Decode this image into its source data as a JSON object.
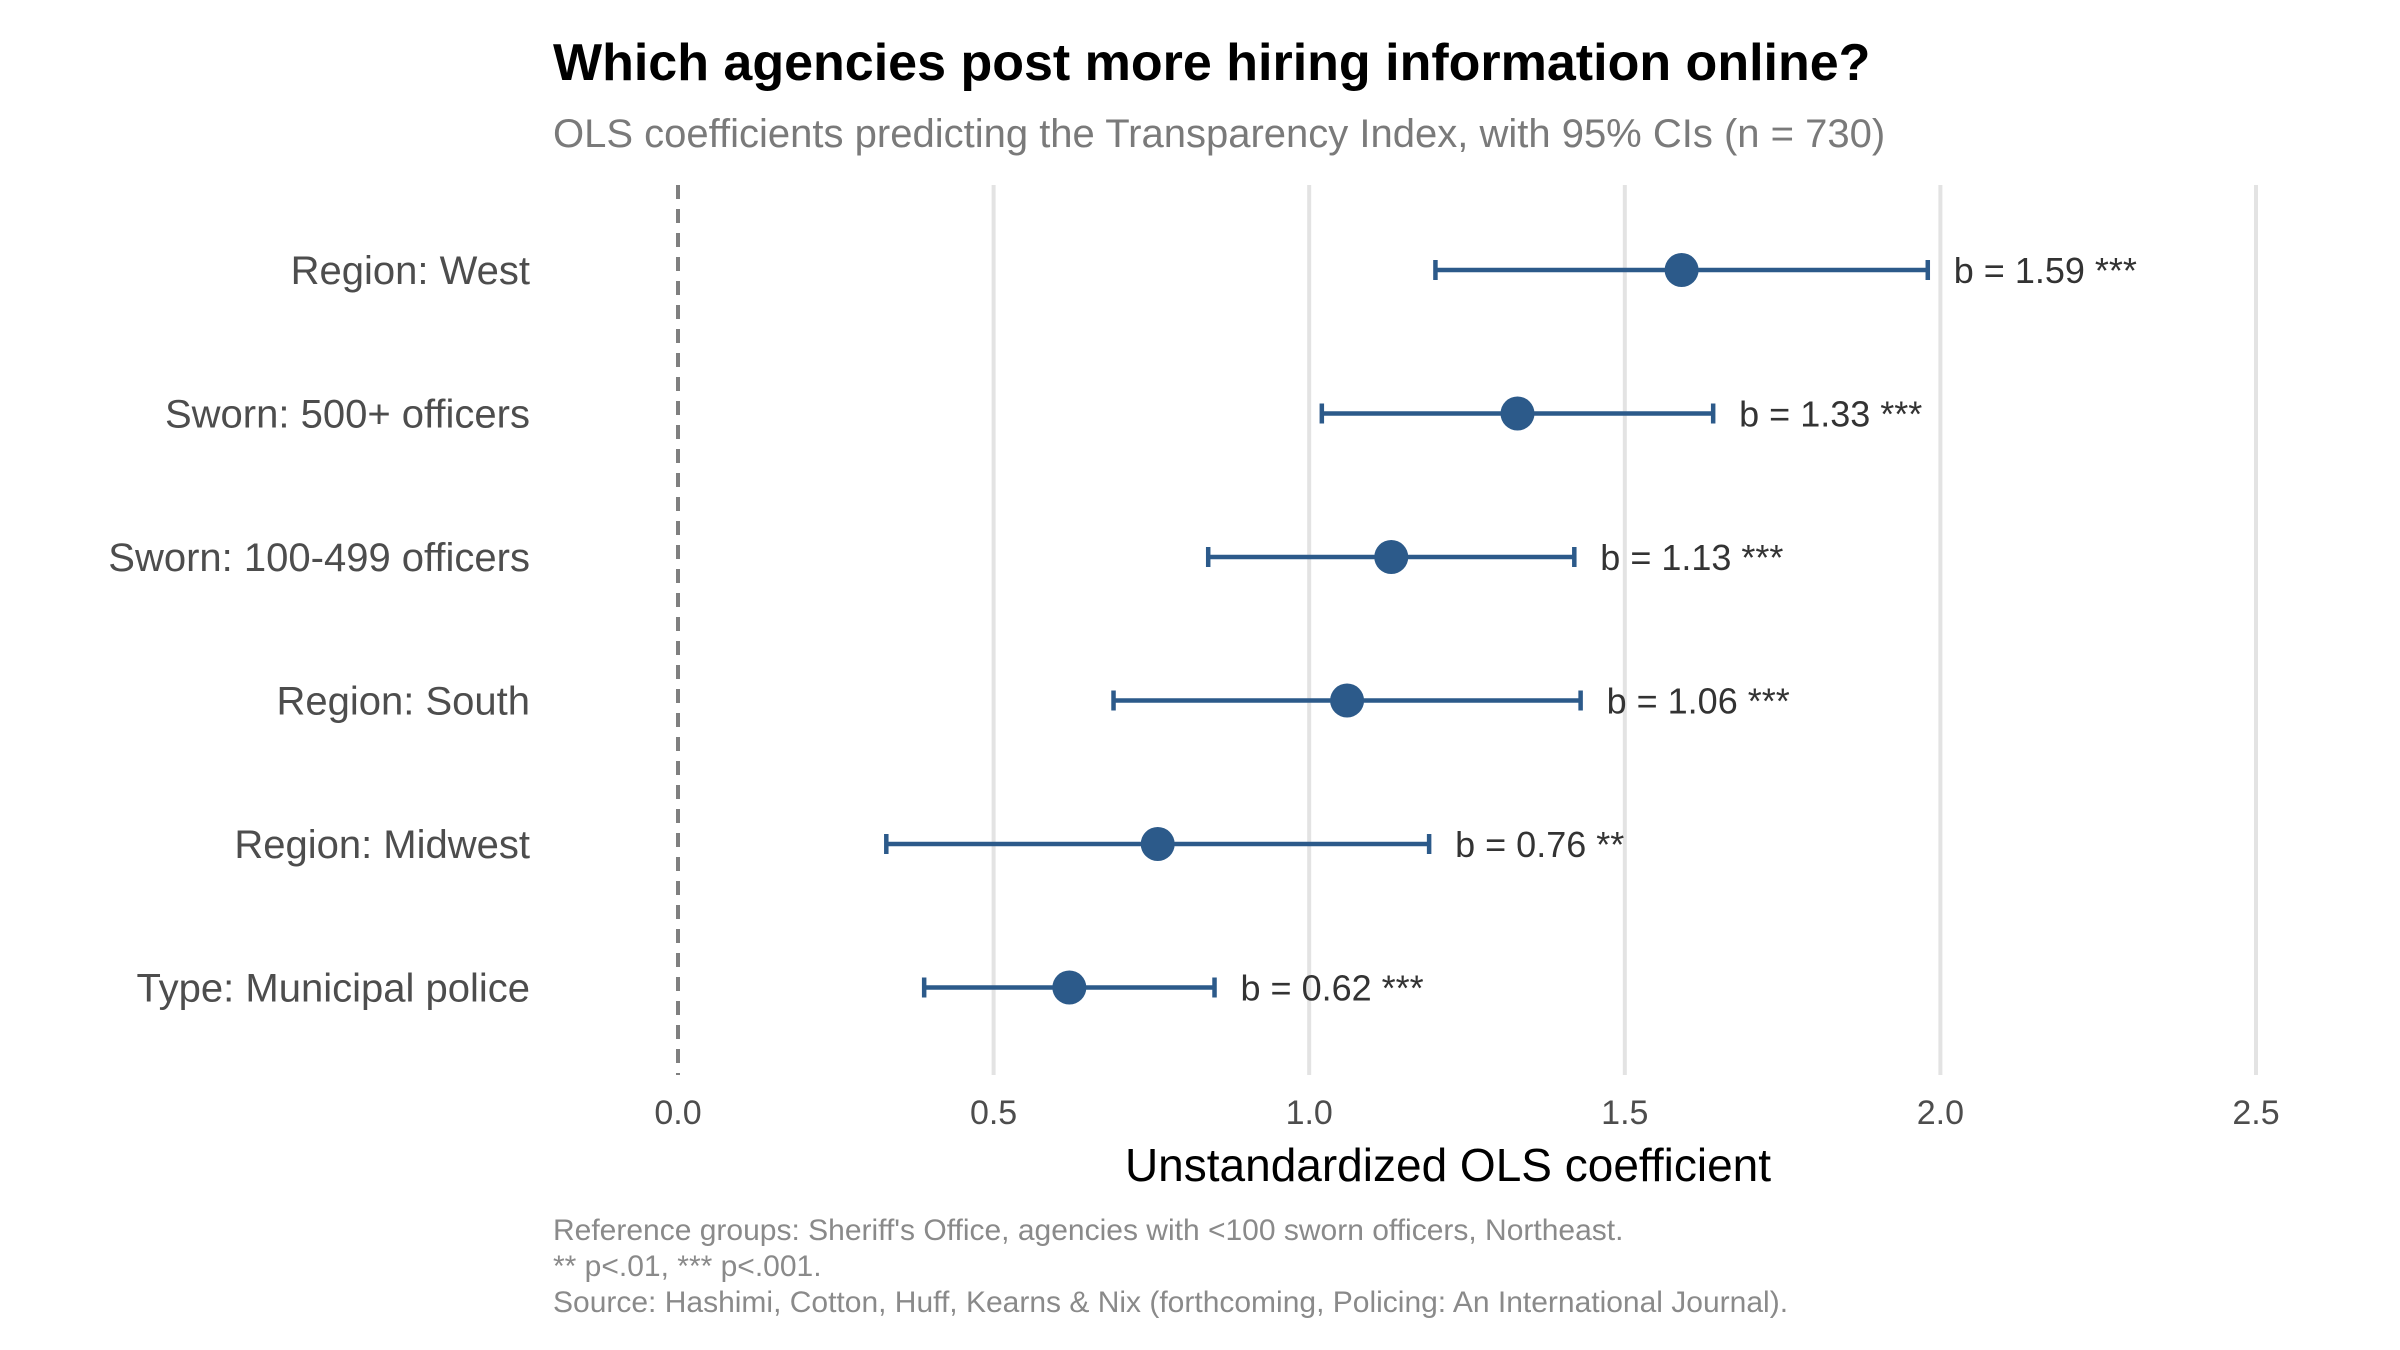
{
  "title": "Which agencies post more hiring information online?",
  "subtitle": "OLS coefficients predicting the Transparency Index, with 95% CIs (n = 730)",
  "caption": [
    "Reference groups: Sheriff's Office, agencies with <100 sworn officers, Northeast.",
    "** p<.01, *** p<.001.",
    "Source: Hashimi, Cotton, Huff, Kearns & Nix (forthcoming, Policing: An International Journal)."
  ],
  "colors": {
    "point": "#2c5a8a",
    "grid": "#e3e3e3",
    "reference_line": "#7f7f7f"
  },
  "chart_data": {
    "type": "scatter",
    "subtype": "coefficient-plot",
    "xlabel": "Unstandardized OLS coefficient",
    "ylabel": "",
    "xlim": [
      0,
      2.5
    ],
    "xticks": [
      0.0,
      0.5,
      1.0,
      1.5,
      2.0,
      2.5
    ],
    "xtick_labels": [
      "0.0",
      "0.5",
      "1.0",
      "1.5",
      "2.0",
      "2.5"
    ],
    "reference_line": 0,
    "grid": "vertical",
    "legend": "none",
    "rows": [
      {
        "label": "Region: West",
        "estimate": 1.59,
        "ci_low": 1.2,
        "ci_high": 1.98,
        "text": "b = 1.59 ***"
      },
      {
        "label": "Sworn: 500+ officers",
        "estimate": 1.33,
        "ci_low": 1.02,
        "ci_high": 1.64,
        "text": "b = 1.33 ***"
      },
      {
        "label": "Sworn: 100-499 officers",
        "estimate": 1.13,
        "ci_low": 0.84,
        "ci_high": 1.42,
        "text": "b = 1.13 ***"
      },
      {
        "label": "Region: South",
        "estimate": 1.06,
        "ci_low": 0.69,
        "ci_high": 1.43,
        "text": "b = 1.06 ***"
      },
      {
        "label": "Region: Midwest",
        "estimate": 0.76,
        "ci_low": 0.33,
        "ci_high": 1.19,
        "text": "b = 0.76 **"
      },
      {
        "label": "Type: Municipal police",
        "estimate": 0.62,
        "ci_low": 0.39,
        "ci_high": 0.85,
        "text": "b = 0.62 ***"
      }
    ]
  }
}
